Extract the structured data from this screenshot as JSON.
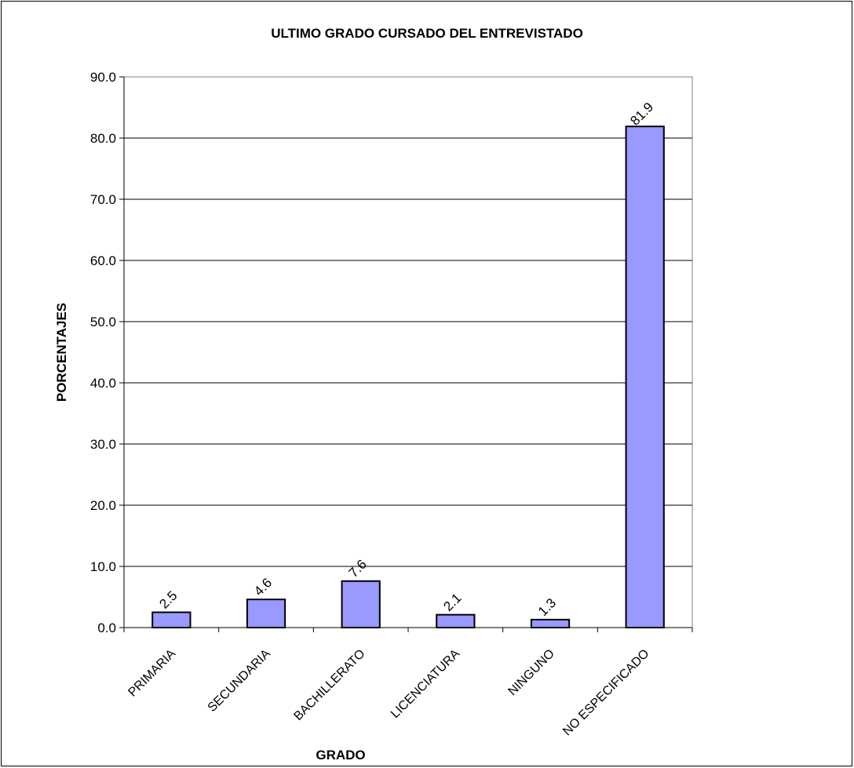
{
  "chart_data": {
    "type": "bar",
    "title": "ULTIMO GRADO CURSADO DEL ENTREVISTADO",
    "xlabel": "GRADO",
    "ylabel": "PORCENTAJES",
    "categories": [
      "PRIMARIA",
      "SECUNDARIA",
      "BACHILLERATO",
      "LICENCIATURA",
      "NINGUNO",
      "NO ESPECIFICADO"
    ],
    "values": [
      2.5,
      4.6,
      7.6,
      2.1,
      1.3,
      81.9
    ],
    "data_labels": [
      "2.5",
      "4.6",
      "7.6",
      "2.1",
      "1.3",
      "81.9"
    ],
    "ylim": [
      0,
      90
    ],
    "yticks": [
      "0.0",
      "10.0",
      "20.0",
      "30.0",
      "40.0",
      "50.0",
      "60.0",
      "70.0",
      "80.0",
      "90.0"
    ],
    "ytick_values": [
      0,
      10,
      20,
      30,
      40,
      50,
      60,
      70,
      80,
      90
    ],
    "grid": true,
    "legend": "none",
    "colors": {
      "bar_fill": "#9999ff",
      "bar_stroke": "#000000",
      "grid": "#000000",
      "plot_border": "#808080"
    }
  }
}
